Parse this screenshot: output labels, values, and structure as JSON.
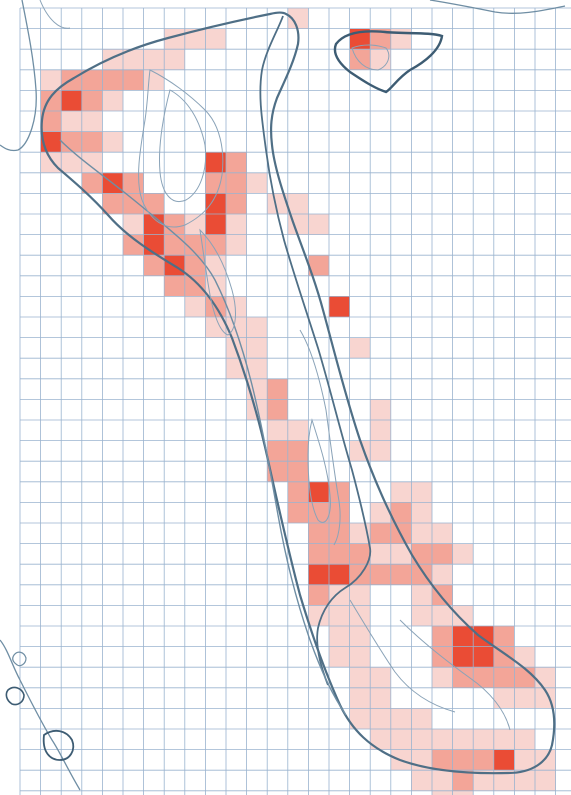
{
  "map": {
    "colors": {
      "background": "#ffffff",
      "grid": "#9ab3cf",
      "coast": "#4f6f86",
      "contour": "#8aa3b8",
      "heat_low": "#f6c7c0",
      "heat_mid": "#f08e7e",
      "heat_high": "#e8391f"
    },
    "icon": "grid-heatmap",
    "cells": [
      [
        13,
        0,
        1
      ],
      [
        7,
        1,
        1
      ],
      [
        8,
        1,
        1
      ],
      [
        9,
        1,
        1
      ],
      [
        16,
        1,
        3
      ],
      [
        17,
        1,
        2
      ],
      [
        18,
        1,
        1
      ],
      [
        4,
        2,
        1
      ],
      [
        5,
        2,
        1
      ],
      [
        6,
        2,
        1
      ],
      [
        7,
        2,
        1
      ],
      [
        16,
        2,
        2
      ],
      [
        17,
        2,
        1
      ],
      [
        1,
        3,
        1
      ],
      [
        2,
        3,
        2
      ],
      [
        3,
        3,
        2
      ],
      [
        4,
        3,
        2
      ],
      [
        5,
        3,
        2
      ],
      [
        6,
        3,
        1
      ],
      [
        1,
        4,
        2
      ],
      [
        2,
        4,
        3
      ],
      [
        3,
        4,
        2
      ],
      [
        4,
        4,
        1
      ],
      [
        1,
        5,
        2
      ],
      [
        2,
        5,
        1
      ],
      [
        3,
        5,
        1
      ],
      [
        1,
        6,
        3
      ],
      [
        2,
        6,
        2
      ],
      [
        3,
        6,
        2
      ],
      [
        4,
        6,
        1
      ],
      [
        1,
        7,
        1
      ],
      [
        2,
        7,
        1
      ],
      [
        3,
        7,
        1
      ],
      [
        9,
        7,
        3
      ],
      [
        10,
        7,
        2
      ],
      [
        3,
        8,
        2
      ],
      [
        4,
        8,
        3
      ],
      [
        5,
        8,
        2
      ],
      [
        9,
        8,
        2
      ],
      [
        10,
        8,
        2
      ],
      [
        11,
        8,
        1
      ],
      [
        4,
        9,
        2
      ],
      [
        5,
        9,
        2
      ],
      [
        6,
        9,
        2
      ],
      [
        9,
        9,
        3
      ],
      [
        10,
        9,
        2
      ],
      [
        12,
        9,
        1
      ],
      [
        13,
        9,
        1
      ],
      [
        5,
        10,
        1
      ],
      [
        6,
        10,
        3
      ],
      [
        7,
        10,
        2
      ],
      [
        8,
        10,
        1
      ],
      [
        9,
        10,
        3
      ],
      [
        10,
        10,
        1
      ],
      [
        13,
        10,
        1
      ],
      [
        14,
        10,
        1
      ],
      [
        5,
        11,
        2
      ],
      [
        6,
        11,
        3
      ],
      [
        7,
        11,
        2
      ],
      [
        8,
        11,
        2
      ],
      [
        9,
        11,
        2
      ],
      [
        10,
        11,
        1
      ],
      [
        6,
        12,
        2
      ],
      [
        7,
        12,
        3
      ],
      [
        8,
        12,
        2
      ],
      [
        9,
        12,
        1
      ],
      [
        14,
        12,
        2
      ],
      [
        7,
        13,
        2
      ],
      [
        8,
        13,
        2
      ],
      [
        9,
        13,
        1
      ],
      [
        8,
        14,
        1
      ],
      [
        9,
        14,
        2
      ],
      [
        10,
        14,
        1
      ],
      [
        15,
        14,
        3
      ],
      [
        9,
        15,
        1
      ],
      [
        10,
        15,
        1
      ],
      [
        11,
        15,
        1
      ],
      [
        10,
        16,
        1
      ],
      [
        11,
        16,
        1
      ],
      [
        16,
        16,
        1
      ],
      [
        10,
        17,
        1
      ],
      [
        11,
        17,
        1
      ],
      [
        11,
        18,
        1
      ],
      [
        12,
        18,
        2
      ],
      [
        11,
        19,
        1
      ],
      [
        12,
        19,
        2
      ],
      [
        17,
        19,
        1
      ],
      [
        12,
        20,
        1
      ],
      [
        13,
        20,
        1
      ],
      [
        17,
        20,
        1
      ],
      [
        12,
        21,
        2
      ],
      [
        13,
        21,
        2
      ],
      [
        16,
        21,
        1
      ],
      [
        17,
        21,
        1
      ],
      [
        12,
        22,
        2
      ],
      [
        13,
        22,
        2
      ],
      [
        13,
        23,
        2
      ],
      [
        14,
        23,
        3
      ],
      [
        15,
        23,
        2
      ],
      [
        18,
        23,
        1
      ],
      [
        19,
        23,
        1
      ],
      [
        13,
        24,
        2
      ],
      [
        14,
        24,
        2
      ],
      [
        15,
        24,
        2
      ],
      [
        17,
        24,
        1
      ],
      [
        18,
        24,
        2
      ],
      [
        19,
        24,
        1
      ],
      [
        14,
        25,
        2
      ],
      [
        15,
        25,
        2
      ],
      [
        16,
        25,
        1
      ],
      [
        17,
        25,
        2
      ],
      [
        18,
        25,
        2
      ],
      [
        19,
        25,
        1
      ],
      [
        20,
        25,
        1
      ],
      [
        14,
        26,
        2
      ],
      [
        15,
        26,
        2
      ],
      [
        16,
        26,
        2
      ],
      [
        17,
        26,
        1
      ],
      [
        18,
        26,
        1
      ],
      [
        19,
        26,
        2
      ],
      [
        20,
        26,
        2
      ],
      [
        21,
        26,
        1
      ],
      [
        14,
        27,
        3
      ],
      [
        15,
        27,
        3
      ],
      [
        16,
        27,
        2
      ],
      [
        17,
        27,
        2
      ],
      [
        18,
        27,
        2
      ],
      [
        19,
        27,
        2
      ],
      [
        20,
        27,
        1
      ],
      [
        14,
        28,
        2
      ],
      [
        15,
        28,
        1
      ],
      [
        16,
        28,
        1
      ],
      [
        19,
        28,
        1
      ],
      [
        20,
        28,
        2
      ],
      [
        14,
        29,
        1
      ],
      [
        15,
        29,
        1
      ],
      [
        16,
        29,
        1
      ],
      [
        19,
        29,
        1
      ],
      [
        20,
        29,
        1
      ],
      [
        21,
        29,
        1
      ],
      [
        15,
        30,
        1
      ],
      [
        16,
        30,
        1
      ],
      [
        20,
        30,
        2
      ],
      [
        21,
        30,
        3
      ],
      [
        22,
        30,
        3
      ],
      [
        23,
        30,
        2
      ],
      [
        15,
        31,
        1
      ],
      [
        16,
        31,
        1
      ],
      [
        20,
        31,
        2
      ],
      [
        21,
        31,
        3
      ],
      [
        22,
        31,
        3
      ],
      [
        23,
        31,
        2
      ],
      [
        24,
        31,
        1
      ],
      [
        16,
        32,
        1
      ],
      [
        17,
        32,
        1
      ],
      [
        20,
        32,
        1
      ],
      [
        21,
        32,
        2
      ],
      [
        22,
        32,
        2
      ],
      [
        23,
        32,
        2
      ],
      [
        24,
        32,
        2
      ],
      [
        25,
        32,
        1
      ],
      [
        16,
        33,
        1
      ],
      [
        17,
        33,
        1
      ],
      [
        23,
        33,
        1
      ],
      [
        24,
        33,
        1
      ],
      [
        25,
        33,
        1
      ],
      [
        16,
        34,
        1
      ],
      [
        17,
        34,
        1
      ],
      [
        18,
        34,
        1
      ],
      [
        19,
        34,
        1
      ],
      [
        17,
        35,
        1
      ],
      [
        18,
        35,
        1
      ],
      [
        19,
        35,
        1
      ],
      [
        20,
        35,
        1
      ],
      [
        21,
        35,
        1
      ],
      [
        22,
        35,
        1
      ],
      [
        23,
        35,
        1
      ],
      [
        24,
        35,
        1
      ],
      [
        18,
        36,
        1
      ],
      [
        19,
        36,
        1
      ],
      [
        20,
        36,
        2
      ],
      [
        21,
        36,
        2
      ],
      [
        22,
        36,
        2
      ],
      [
        23,
        36,
        3
      ],
      [
        24,
        36,
        1
      ],
      [
        25,
        36,
        1
      ],
      [
        19,
        37,
        1
      ],
      [
        20,
        37,
        1
      ],
      [
        21,
        37,
        2
      ],
      [
        22,
        37,
        1
      ],
      [
        23,
        37,
        1
      ],
      [
        24,
        37,
        1
      ],
      [
        25,
        37,
        1
      ],
      [
        20,
        38,
        1
      ],
      [
        21,
        38,
        1
      ]
    ]
  }
}
